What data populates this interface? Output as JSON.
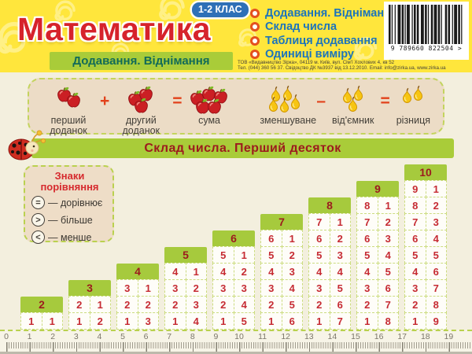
{
  "header": {
    "title": "Математика",
    "grade_badge": "1-2 КЛАС",
    "topics": [
      "Додавання. Віднімання",
      "Склад числа",
      "Таблиця додавання",
      "Одиниці виміру"
    ],
    "barcode_text": "9 789660 822504 >",
    "publisher_line1": "ТОВ «Видавництво Зірка», 04119 м. Київ, вул. Сім'ї Хохлових 4, кв 52",
    "publisher_line2": "Тел. (044) 360 56 37. Свідоцтво ДК №3937 від 13.12.2010. Email: info@zirka.ua, www.zirka.ua"
  },
  "sections": {
    "addition_banner": "Додавання. Віднімання",
    "composition_banner": "Склад числа. Перший десяток"
  },
  "equations": {
    "addition": {
      "fruit": "apple",
      "operator": "+",
      "equals": "=",
      "parts": [
        {
          "count": 2,
          "label": "перший доданок"
        },
        {
          "count": 3,
          "label": "другий доданок"
        },
        {
          "count": 5,
          "label": "сума"
        }
      ]
    },
    "subtraction": {
      "fruit": "pear",
      "operator": "–",
      "equals": "=",
      "parts": [
        {
          "count": 5,
          "label": "зменшуване"
        },
        {
          "count": 3,
          "label": "від'ємник"
        },
        {
          "count": 2,
          "label": "різниця"
        }
      ]
    }
  },
  "signs_box": {
    "title_line1": "Знаки",
    "title_line2": "порівняння",
    "dash": "—",
    "items": [
      {
        "symbol": "=",
        "label": "дорівнює"
      },
      {
        "symbol": ">",
        "label": "більше"
      },
      {
        "symbol": "<",
        "label": "менше"
      }
    ]
  },
  "chart_data": {
    "type": "table",
    "title": "Склад числа. Перший десяток",
    "columns": [
      {
        "total": 2,
        "pairs": [
          [
            1,
            1
          ]
        ]
      },
      {
        "total": 3,
        "pairs": [
          [
            2,
            1
          ],
          [
            1,
            2
          ]
        ]
      },
      {
        "total": 4,
        "pairs": [
          [
            3,
            1
          ],
          [
            2,
            2
          ],
          [
            1,
            3
          ]
        ]
      },
      {
        "total": 5,
        "pairs": [
          [
            4,
            1
          ],
          [
            3,
            2
          ],
          [
            2,
            3
          ],
          [
            1,
            4
          ]
        ]
      },
      {
        "total": 6,
        "pairs": [
          [
            5,
            1
          ],
          [
            4,
            2
          ],
          [
            3,
            3
          ],
          [
            2,
            4
          ],
          [
            1,
            5
          ]
        ]
      },
      {
        "total": 7,
        "pairs": [
          [
            6,
            1
          ],
          [
            5,
            2
          ],
          [
            4,
            3
          ],
          [
            3,
            4
          ],
          [
            2,
            5
          ],
          [
            1,
            6
          ]
        ]
      },
      {
        "total": 8,
        "pairs": [
          [
            7,
            1
          ],
          [
            6,
            2
          ],
          [
            5,
            3
          ],
          [
            4,
            4
          ],
          [
            3,
            5
          ],
          [
            2,
            6
          ],
          [
            1,
            7
          ]
        ]
      },
      {
        "total": 9,
        "pairs": [
          [
            8,
            1
          ],
          [
            7,
            2
          ],
          [
            6,
            3
          ],
          [
            5,
            4
          ],
          [
            4,
            5
          ],
          [
            3,
            6
          ],
          [
            2,
            7
          ],
          [
            1,
            8
          ]
        ]
      },
      {
        "total": 10,
        "pairs": [
          [
            9,
            1
          ],
          [
            8,
            2
          ],
          [
            7,
            3
          ],
          [
            6,
            4
          ],
          [
            5,
            5
          ],
          [
            4,
            6
          ],
          [
            3,
            7
          ],
          [
            2,
            8
          ],
          [
            1,
            9
          ]
        ]
      }
    ]
  },
  "ruler": {
    "numbers": [
      "0",
      "1",
      "2",
      "3",
      "4",
      "5",
      "6",
      "7",
      "8",
      "9",
      "10",
      "11",
      "12",
      "13",
      "14",
      "15",
      "16",
      "17",
      "18",
      "19"
    ]
  },
  "colors": {
    "background": "#f3efde",
    "banner_yellow": "#ffe63c",
    "accent_green": "#a9cc39",
    "title_red": "#d6232b",
    "badge_blue": "#2e70b7",
    "topic_blue": "#1b74bc",
    "number_red": "#c62b33"
  }
}
